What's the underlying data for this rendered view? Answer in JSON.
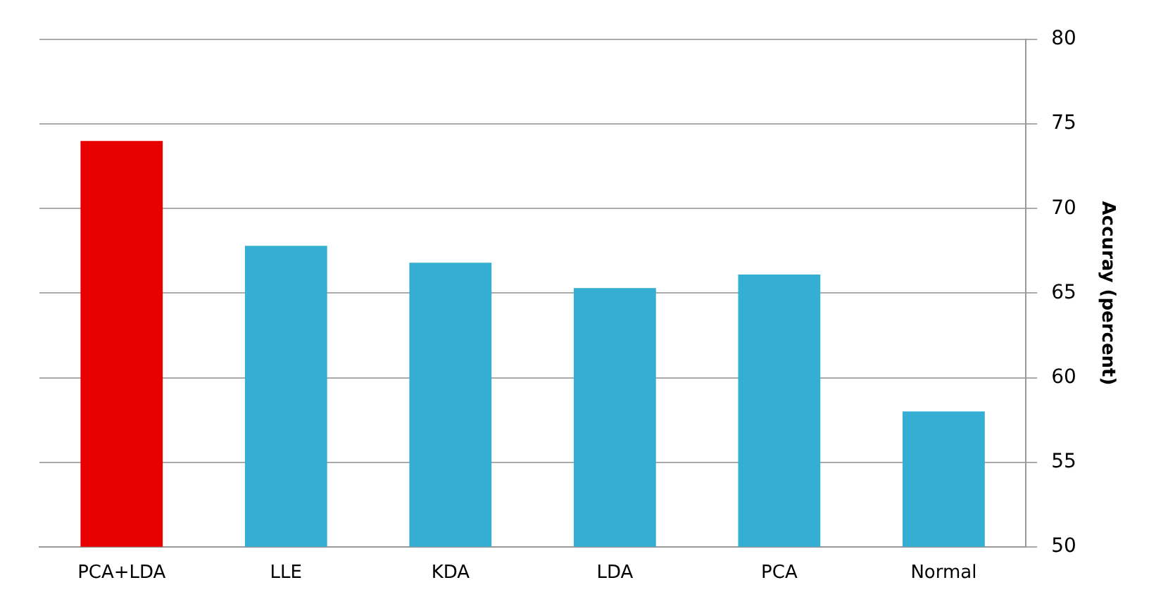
{
  "chart_data": {
    "type": "bar",
    "categories": [
      "PCA+LDA",
      "LLE",
      "KDA",
      "LDA",
      "PCA",
      "Normal"
    ],
    "values": [
      74,
      67.8,
      66.8,
      65.3,
      66.1,
      58.0
    ],
    "colors": [
      "#e80000",
      "#35aed3",
      "#35aed3",
      "#35aed3",
      "#35aed3",
      "#35aed3"
    ],
    "ylabel": "Accuray (percent)",
    "ylim": [
      50,
      80
    ],
    "yticks": [
      50,
      55,
      60,
      65,
      70,
      75,
      80
    ],
    "grid": "y",
    "legend": false
  }
}
